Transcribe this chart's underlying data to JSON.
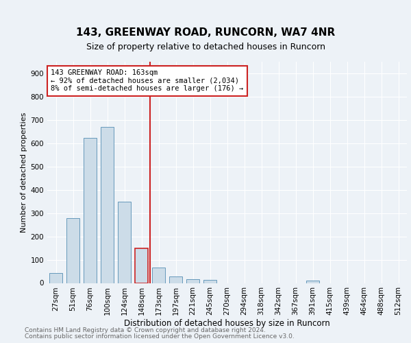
{
  "title1": "143, GREENWAY ROAD, RUNCORN, WA7 4NR",
  "title2": "Size of property relative to detached houses in Runcorn",
  "xlabel": "Distribution of detached houses by size in Runcorn",
  "ylabel": "Number of detached properties",
  "categories": [
    "27sqm",
    "51sqm",
    "76sqm",
    "100sqm",
    "124sqm",
    "148sqm",
    "173sqm",
    "197sqm",
    "221sqm",
    "245sqm",
    "270sqm",
    "294sqm",
    "318sqm",
    "342sqm",
    "367sqm",
    "391sqm",
    "415sqm",
    "439sqm",
    "464sqm",
    "488sqm",
    "512sqm"
  ],
  "values": [
    42,
    278,
    622,
    670,
    349,
    148,
    65,
    28,
    16,
    12,
    0,
    0,
    0,
    0,
    0,
    10,
    0,
    0,
    0,
    0,
    0
  ],
  "bar_color": "#ccdce8",
  "bar_edge_color": "#6699bb",
  "highlight_bar_index": 5,
  "highlight_bar_edge_color": "#cc2222",
  "vline_color": "#cc2222",
  "vline_x": 5.5,
  "annotation_line1": "143 GREENWAY ROAD: 163sqm",
  "annotation_line2": "← 92% of detached houses are smaller (2,034)",
  "annotation_line3": "8% of semi-detached houses are larger (176) →",
  "annotation_box_color": "#cc2222",
  "ylim": [
    0,
    950
  ],
  "yticks": [
    0,
    100,
    200,
    300,
    400,
    500,
    600,
    700,
    800,
    900
  ],
  "footer1": "Contains HM Land Registry data © Crown copyright and database right 2024.",
  "footer2": "Contains public sector information licensed under the Open Government Licence v3.0.",
  "bg_color": "#edf2f7",
  "plot_bg_color": "#edf2f7",
  "grid_color": "#ffffff",
  "title1_fontsize": 11,
  "title2_fontsize": 9,
  "ylabel_fontsize": 8,
  "xlabel_fontsize": 8.5,
  "tick_fontsize": 7.5,
  "footer_fontsize": 6.5
}
